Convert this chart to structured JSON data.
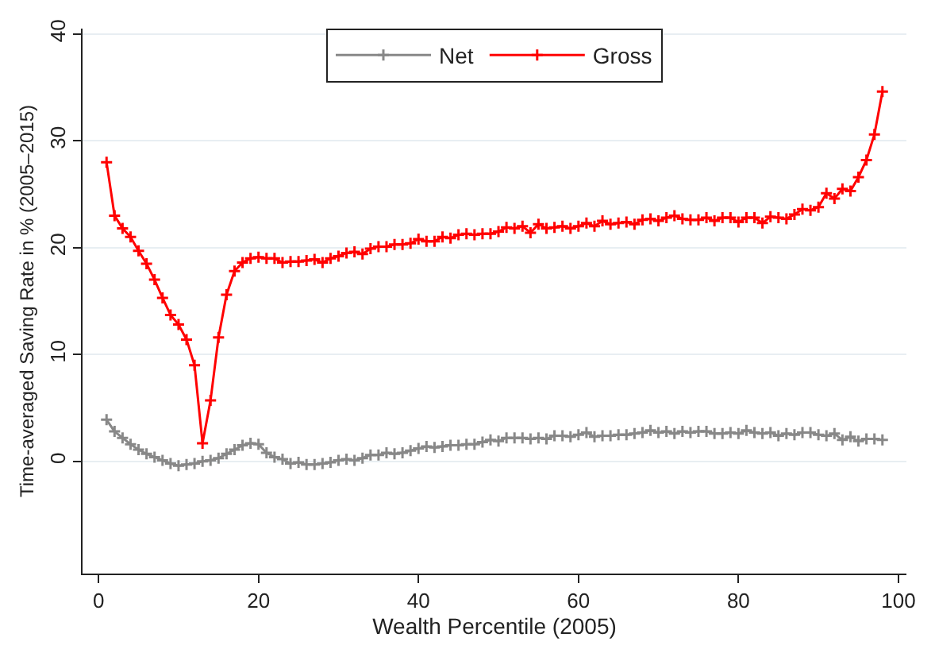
{
  "chart_data": {
    "type": "line",
    "xlabel": "Wealth Percentile (2005)",
    "ylabel": "Time-averaged Saving Rate in % (2005–2015)",
    "x": [
      1,
      2,
      3,
      4,
      5,
      6,
      7,
      8,
      9,
      10,
      11,
      12,
      13,
      14,
      15,
      16,
      17,
      18,
      19,
      20,
      21,
      22,
      23,
      24,
      25,
      26,
      27,
      28,
      29,
      30,
      31,
      32,
      33,
      34,
      35,
      36,
      37,
      38,
      39,
      40,
      41,
      42,
      43,
      44,
      45,
      46,
      47,
      48,
      49,
      50,
      51,
      52,
      53,
      54,
      55,
      56,
      57,
      58,
      59,
      60,
      61,
      62,
      63,
      64,
      65,
      66,
      67,
      68,
      69,
      70,
      71,
      72,
      73,
      74,
      75,
      76,
      77,
      78,
      79,
      80,
      81,
      82,
      83,
      84,
      85,
      86,
      87,
      88,
      89,
      90,
      91,
      92,
      93,
      94,
      95,
      96,
      97,
      98
    ],
    "series": [
      {
        "name": "Net",
        "color": "#888888",
        "values": [
          3.9,
          2.8,
          2.2,
          1.6,
          1.1,
          0.7,
          0.4,
          0.1,
          -0.2,
          -0.4,
          -0.3,
          -0.2,
          0,
          0.1,
          0.3,
          0.7,
          1.1,
          1.5,
          1.7,
          1.6,
          0.8,
          0.4,
          0.2,
          -0.2,
          -0.1,
          -0.3,
          -0.3,
          -0.2,
          -0.1,
          0.1,
          0.2,
          0.1,
          0.3,
          0.6,
          0.6,
          0.8,
          0.7,
          0.8,
          1.0,
          1.2,
          1.4,
          1.3,
          1.4,
          1.5,
          1.5,
          1.6,
          1.6,
          1.8,
          2.0,
          1.9,
          2.2,
          2.2,
          2.2,
          2.1,
          2.2,
          2.1,
          2.4,
          2.4,
          2.3,
          2.5,
          2.7,
          2.3,
          2.4,
          2.4,
          2.5,
          2.5,
          2.6,
          2.7,
          2.9,
          2.7,
          2.8,
          2.6,
          2.8,
          2.7,
          2.8,
          2.8,
          2.6,
          2.6,
          2.7,
          2.6,
          2.9,
          2.7,
          2.6,
          2.7,
          2.4,
          2.6,
          2.5,
          2.7,
          2.7,
          2.5,
          2.4,
          2.6,
          2.0,
          2.3,
          1.9,
          2.1,
          2.1,
          2.0
        ]
      },
      {
        "name": "Gross",
        "color": "#ff0000",
        "values": [
          28,
          23,
          21.8,
          21,
          19.7,
          18.5,
          17,
          15.3,
          13.7,
          12.8,
          11.4,
          9,
          1.7,
          5.7,
          11.6,
          15.6,
          17.8,
          18.6,
          19.0,
          19.1,
          19.0,
          19.0,
          18.6,
          18.7,
          18.7,
          18.8,
          18.9,
          18.6,
          19.0,
          19.2,
          19.5,
          19.6,
          19.4,
          19.9,
          20.1,
          20.1,
          20.3,
          20.3,
          20.4,
          20.8,
          20.6,
          20.6,
          21.0,
          20.9,
          21.2,
          21.3,
          21.2,
          21.3,
          21.3,
          21.5,
          21.9,
          21.8,
          22.0,
          21.4,
          22.2,
          21.8,
          21.9,
          22.0,
          21.8,
          22.0,
          22.3,
          22.0,
          22.5,
          22.2,
          22.3,
          22.4,
          22.2,
          22.6,
          22.7,
          22.5,
          22.8,
          23.0,
          22.7,
          22.6,
          22.6,
          22.8,
          22.5,
          22.8,
          22.8,
          22.4,
          22.8,
          22.8,
          22.3,
          22.9,
          22.8,
          22.7,
          23.1,
          23.6,
          23.5,
          23.8,
          25.1,
          24.6,
          25.5,
          25.3,
          26.6,
          28.2,
          30.6,
          34.6
        ]
      }
    ],
    "xlim": [
      -2,
      101
    ],
    "xticks": [
      0,
      20,
      40,
      60,
      80,
      100
    ],
    "ylim": [
      -10.5,
      40.5
    ],
    "yticks": [
      0,
      10,
      20,
      30,
      40
    ],
    "grid": "y",
    "legend": "top",
    "marker": "cross",
    "line_style": "solid"
  }
}
